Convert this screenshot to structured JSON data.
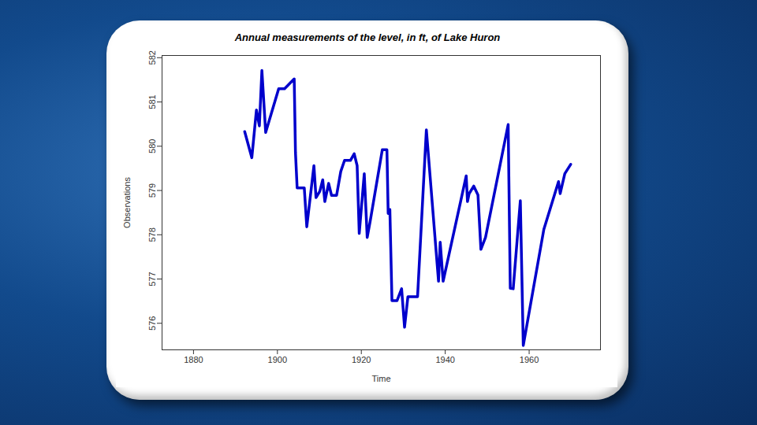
{
  "chart_data": {
    "type": "line",
    "title": "Annual measurements of the level, in ft, of Lake Huron",
    "x_label": "Time",
    "y_label": "Observations",
    "color": "#0000cc",
    "grid": false,
    "x": [
      1892.2,
      1893.9,
      1895.0,
      1895.7,
      1896.3,
      1897.2,
      1900.3,
      1901.7,
      1904.0,
      1904.3,
      1904.7,
      1906.4,
      1907.0,
      1908.7,
      1909.2,
      1910.1,
      1910.8,
      1911.3,
      1912.2,
      1912.9,
      1914.1,
      1915.1,
      1916.0,
      1917.4,
      1918.3,
      1919.0,
      1919.5,
      1920.7,
      1921.4,
      1922.1,
      1925.0,
      1926.1,
      1926.4,
      1926.8,
      1927.3,
      1928.5,
      1929.6,
      1930.3,
      1931.1,
      1933.4,
      1935.5,
      1938.4,
      1938.8,
      1939.5,
      1945.0,
      1945.3,
      1945.7,
      1946.8,
      1947.8,
      1948.5,
      1949.6,
      1955.0,
      1955.5,
      1956.2,
      1957.9,
      1958.6,
      1963.5,
      1967.0,
      1967.4,
      1968.5,
      1969.9
    ],
    "values": [
      580.33,
      579.74,
      580.82,
      580.46,
      581.71,
      580.31,
      581.3,
      581.3,
      581.52,
      579.86,
      579.06,
      579.06,
      578.18,
      579.56,
      578.84,
      578.98,
      579.24,
      578.75,
      579.16,
      578.89,
      578.89,
      579.43,
      579.68,
      579.68,
      579.83,
      579.56,
      578.03,
      579.38,
      577.94,
      578.3,
      579.92,
      579.92,
      578.48,
      578.57,
      576.51,
      576.51,
      576.78,
      575.91,
      576.6,
      576.6,
      580.37,
      576.95,
      577.83,
      576.95,
      579.33,
      578.75,
      578.93,
      579.1,
      578.9,
      577.67,
      577.94,
      580.49,
      576.79,
      576.78,
      578.77,
      575.5,
      578.12,
      579.2,
      578.93,
      579.38,
      579.59
    ],
    "xlim": [
      1872.5,
      1977
    ],
    "xticks": [
      1880,
      1900,
      1920,
      1940,
      1960
    ],
    "ylim": [
      575.4,
      582.05
    ],
    "yticks": [
      576,
      577,
      578,
      579,
      580,
      581,
      582
    ]
  }
}
